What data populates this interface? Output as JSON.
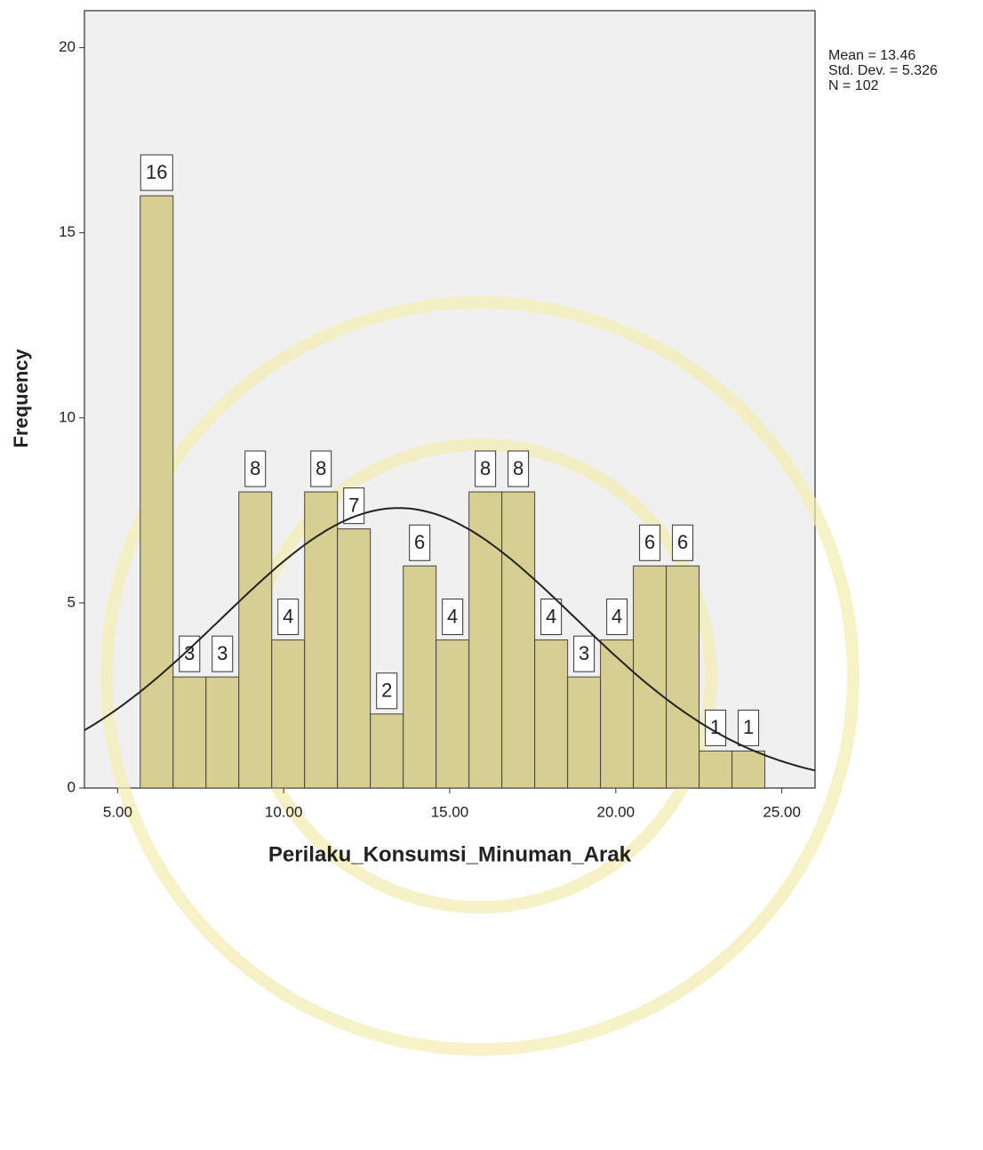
{
  "chart_data": {
    "type": "histogram",
    "xlabel": "Perilaku_Konsumsi_Minuman_Arak",
    "ylabel": "Frequency",
    "bins": [
      5.68,
      6.67,
      7.66,
      8.65,
      9.64,
      10.63,
      11.62,
      12.61,
      13.6,
      14.59,
      15.58,
      16.57,
      17.56,
      18.55,
      19.54,
      20.53,
      21.52,
      22.51,
      23.5,
      24.49
    ],
    "values": [
      16,
      3,
      3,
      8,
      4,
      8,
      7,
      2,
      6,
      4,
      8,
      8,
      4,
      3,
      4,
      6,
      6,
      1,
      1
    ],
    "color": "#d6cf91",
    "xlim": [
      4,
      26
    ],
    "ylim": [
      0,
      21
    ],
    "xticks": [
      {
        "value": 5,
        "label": "5.00"
      },
      {
        "value": 10,
        "label": "10.00"
      },
      {
        "value": 15,
        "label": "15.00"
      },
      {
        "value": 20,
        "label": "20.00"
      },
      {
        "value": 25,
        "label": "25.00"
      }
    ],
    "yticks": [
      0,
      5,
      10,
      15,
      20
    ],
    "annotations": [
      "Mean = 13.46",
      "Std. Dev. = 5.326",
      "N = 102"
    ],
    "normal_curve": {
      "mean": 13.46,
      "std_dev": 5.326,
      "n": 102
    }
  }
}
